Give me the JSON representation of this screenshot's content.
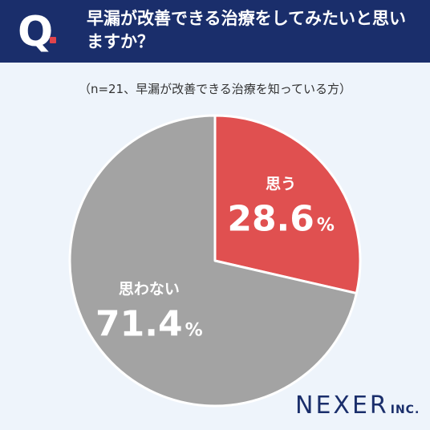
{
  "header": {
    "q_label": "Q",
    "question": "早漏が改善できる治療をしてみたいと思いますか？"
  },
  "subtitle": "（n=21、早漏が改善できる治療を知っている方）",
  "chart_data": {
    "type": "pie",
    "slices": [
      {
        "label": "思う",
        "value": 28.6,
        "value_text": "28.6",
        "unit": "%",
        "color": "#e05050"
      },
      {
        "label": "思わない",
        "value": 71.4,
        "value_text": "71.4",
        "unit": "%",
        "color": "#a3a3a3"
      }
    ],
    "start": "12 o'clock",
    "direction": "clockwise"
  },
  "logo": {
    "main": "NEXER",
    "sub": "INC."
  }
}
